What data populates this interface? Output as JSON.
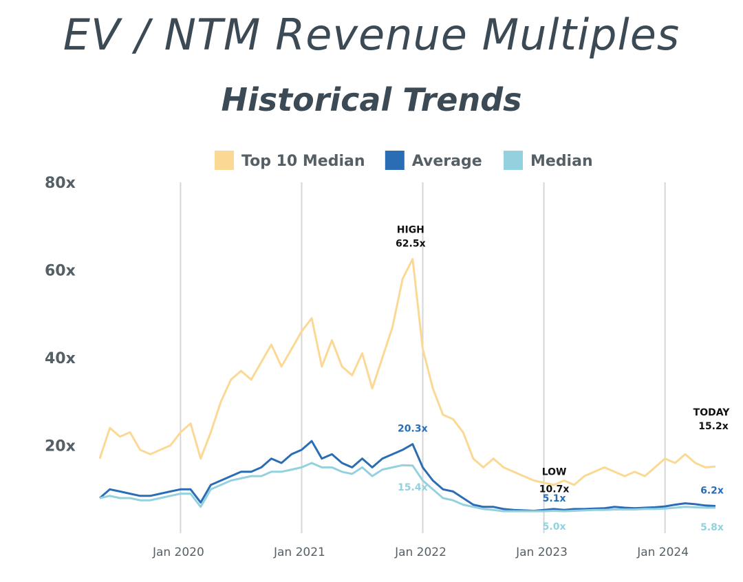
{
  "chart_data": {
    "type": "line",
    "title": "EV / NTM Revenue Multiples",
    "subtitle": "Historical Trends",
    "xlabel": "",
    "ylabel": "",
    "ylim": [
      0,
      80
    ],
    "y_ticks": [
      "20x",
      "40x",
      "60x",
      "80x"
    ],
    "x_ticks": [
      "Jan 2020",
      "Jan 2021",
      "Jan 2022",
      "Jan 2023",
      "Jan 2024"
    ],
    "xlim": [
      "2019-05",
      "2024-06"
    ],
    "grid": "vertical lines at x ticks",
    "legend": "top",
    "x": [
      "2019-05",
      "2019-06",
      "2019-07",
      "2019-08",
      "2019-09",
      "2019-10",
      "2019-11",
      "2019-12",
      "2020-01",
      "2020-02",
      "2020-03",
      "2020-04",
      "2020-05",
      "2020-06",
      "2020-07",
      "2020-08",
      "2020-09",
      "2020-10",
      "2020-11",
      "2020-12",
      "2021-01",
      "2021-02",
      "2021-03",
      "2021-04",
      "2021-05",
      "2021-06",
      "2021-07",
      "2021-08",
      "2021-09",
      "2021-10",
      "2021-11",
      "2021-12",
      "2022-01",
      "2022-02",
      "2022-03",
      "2022-04",
      "2022-05",
      "2022-06",
      "2022-07",
      "2022-08",
      "2022-09",
      "2022-10",
      "2022-11",
      "2022-12",
      "2023-01",
      "2023-02",
      "2023-03",
      "2023-04",
      "2023-05",
      "2023-06",
      "2023-07",
      "2023-08",
      "2023-09",
      "2023-10",
      "2023-11",
      "2023-12",
      "2024-01",
      "2024-02",
      "2024-03",
      "2024-04",
      "2024-05",
      "2024-06"
    ],
    "series": [
      {
        "name": "Top 10 Median",
        "color": "#fbd893",
        "values": [
          17,
          24,
          22,
          23,
          19,
          18,
          19,
          20,
          23,
          25,
          17,
          23,
          30,
          35,
          37,
          35,
          39,
          43,
          38,
          42,
          46,
          49,
          38,
          44,
          38,
          36,
          41,
          33,
          40,
          47,
          58,
          62.5,
          42,
          33,
          27,
          26,
          23,
          17,
          15,
          17,
          15,
          14,
          13,
          12,
          11.5,
          11,
          12,
          11,
          13,
          14,
          15,
          14,
          13,
          14,
          13,
          15,
          17,
          16,
          18,
          16,
          15,
          15.2
        ]
      },
      {
        "name": "Average",
        "color": "#2a6db5",
        "values": [
          8,
          10,
          9.5,
          9,
          8.5,
          8.5,
          9,
          9.5,
          10,
          10,
          7,
          11,
          12,
          13,
          14,
          14,
          15,
          17,
          16,
          18,
          19,
          21,
          17,
          18,
          16,
          15,
          17,
          15,
          17,
          18,
          19,
          20.3,
          15,
          12,
          10,
          9.5,
          8,
          6.5,
          6,
          6,
          5.5,
          5.3,
          5.2,
          5.1,
          5.3,
          5.5,
          5.3,
          5.5,
          5.5,
          5.6,
          5.7,
          6,
          5.8,
          5.7,
          5.8,
          5.9,
          6.1,
          6.5,
          6.8,
          6.6,
          6.3,
          6.2
        ]
      },
      {
        "name": "Median",
        "color": "#94d1df",
        "values": [
          8,
          8.5,
          8,
          8,
          7.5,
          7.5,
          8,
          8.5,
          9,
          9,
          6,
          10,
          11,
          12,
          12.5,
          13,
          13,
          14,
          14,
          14.5,
          15,
          16,
          15,
          15,
          14,
          13.5,
          15,
          13,
          14.5,
          15,
          15.5,
          15.4,
          12,
          10,
          8,
          7.5,
          6.5,
          6,
          5.5,
          5.3,
          5,
          5,
          5,
          5,
          5,
          5.1,
          5,
          5.1,
          5.2,
          5.3,
          5.3,
          5.4,
          5.4,
          5.4,
          5.5,
          5.5,
          5.6,
          5.8,
          6,
          5.9,
          5.8,
          5.8
        ]
      }
    ],
    "annotations": [
      {
        "text": "HIGH",
        "series": "Top 10 Median",
        "x": "2021-12"
      },
      {
        "text": "62.5x",
        "series": "Top 10 Median",
        "x": "2021-12"
      },
      {
        "text": "20.3x",
        "series": "Average",
        "x": "2021-12"
      },
      {
        "text": "15.4x",
        "series": "Median",
        "x": "2021-12"
      },
      {
        "text": "LOW",
        "series": "Top 10 Median",
        "x": "2023-01"
      },
      {
        "text": "10.7x",
        "series": "Top 10 Median",
        "x": "2023-01"
      },
      {
        "text": "5.1x",
        "series": "Average",
        "x": "2023-01"
      },
      {
        "text": "5.0x",
        "series": "Median",
        "x": "2023-01"
      },
      {
        "text": "TODAY",
        "series": "Top 10 Median",
        "x": "2024-06"
      },
      {
        "text": "15.2x",
        "series": "Top 10 Median",
        "x": "2024-06"
      },
      {
        "text": "6.2x",
        "series": "Average",
        "x": "2024-06"
      },
      {
        "text": "5.8x",
        "series": "Median",
        "x": "2024-06"
      }
    ]
  }
}
